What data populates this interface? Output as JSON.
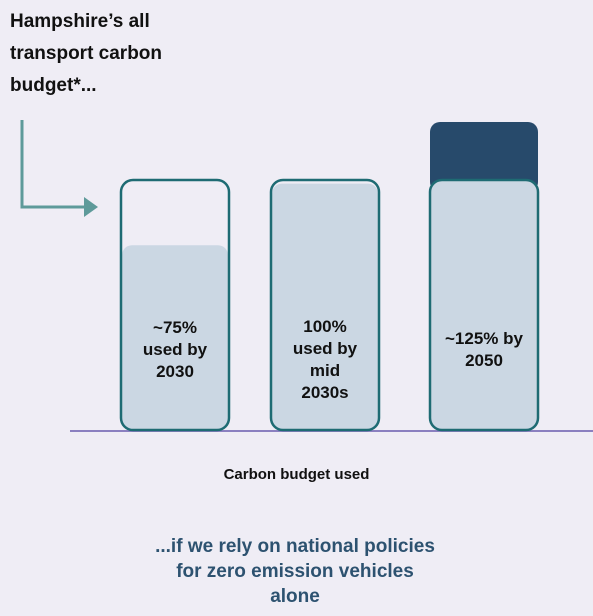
{
  "chart_data": {
    "type": "bar",
    "title": "Hampshire’s all transport carbon budget*...",
    "values": [
      75,
      100,
      125
    ],
    "value_labels": [
      "~75% used by 2030",
      "100% used by mid 2030s",
      "~125% by 2050"
    ],
    "x_label": "Carbon budget used",
    "subtitle": "...if we rely on national policies for zero emission vehicles alone",
    "color": "#cbd7e3",
    "over_color": "#274a6b",
    "border_color": "#1e6b73"
  }
}
